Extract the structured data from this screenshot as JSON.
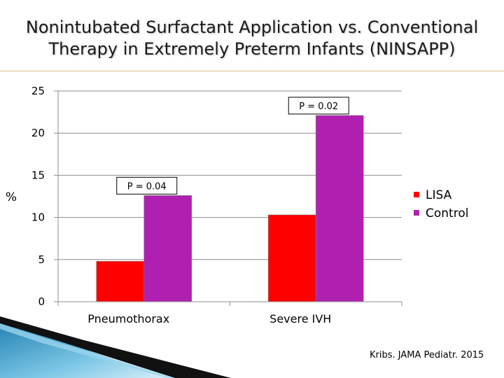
{
  "slide": {
    "title_line1": "Nonintubated Surfactant Application vs. Conventional",
    "title_line2": "Therapy in Extremely Preterm Infants (NINSAPP)",
    "citation": "Kribs. JAMA Pediatr. 2015"
  },
  "chart_data": {
    "type": "bar",
    "title": "",
    "xlabel": "",
    "ylabel": "%",
    "ylim": [
      0,
      25
    ],
    "yticks": [
      0,
      5,
      10,
      15,
      20,
      25
    ],
    "categories": [
      "Pneumothorax",
      "Severe IVH"
    ],
    "series": [
      {
        "name": "LISA",
        "color": "#ff0000",
        "values": [
          4.8,
          10.3
        ]
      },
      {
        "name": "Control",
        "color": "#b020b0",
        "values": [
          12.6,
          22.1
        ]
      }
    ],
    "annotations": [
      {
        "category": "Pneumothorax",
        "text": "P = 0.04"
      },
      {
        "category": "Severe IVH",
        "text": "P = 0.02"
      }
    ],
    "grid": true,
    "legend_position": "right"
  }
}
